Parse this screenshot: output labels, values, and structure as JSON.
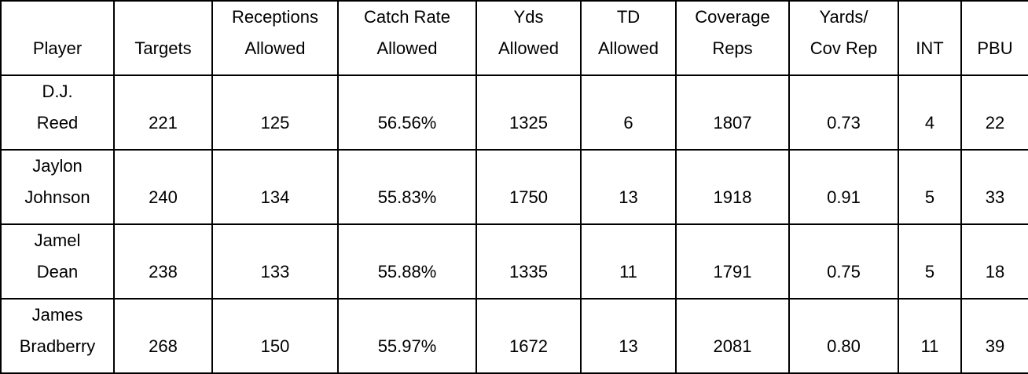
{
  "chart_data": {
    "type": "table",
    "columns": [
      "Player",
      "Targets",
      "Receptions\nAllowed",
      "Catch Rate\nAllowed",
      "Yds\nAllowed",
      "TD\nAllowed",
      "Coverage\nReps",
      "Yards/\nCov Rep",
      "INT",
      "PBU"
    ],
    "rows": [
      [
        "D.J.\nReed",
        "221",
        "125",
        "56.56%",
        "1325",
        "6",
        "1807",
        "0.73",
        "4",
        "22"
      ],
      [
        "Jaylon\nJohnson",
        "240",
        "134",
        "55.83%",
        "1750",
        "13",
        "1918",
        "0.91",
        "5",
        "33"
      ],
      [
        "Jamel\nDean",
        "238",
        "133",
        "55.88%",
        "1335",
        "11",
        "1791",
        "0.75",
        "5",
        "18"
      ],
      [
        "James\nBradberry",
        "268",
        "150",
        "55.97%",
        "1672",
        "13",
        "2081",
        "0.80",
        "11",
        "39"
      ]
    ]
  },
  "colors": {
    "border": "#000000",
    "text": "#000000",
    "background": "#ffffff"
  }
}
